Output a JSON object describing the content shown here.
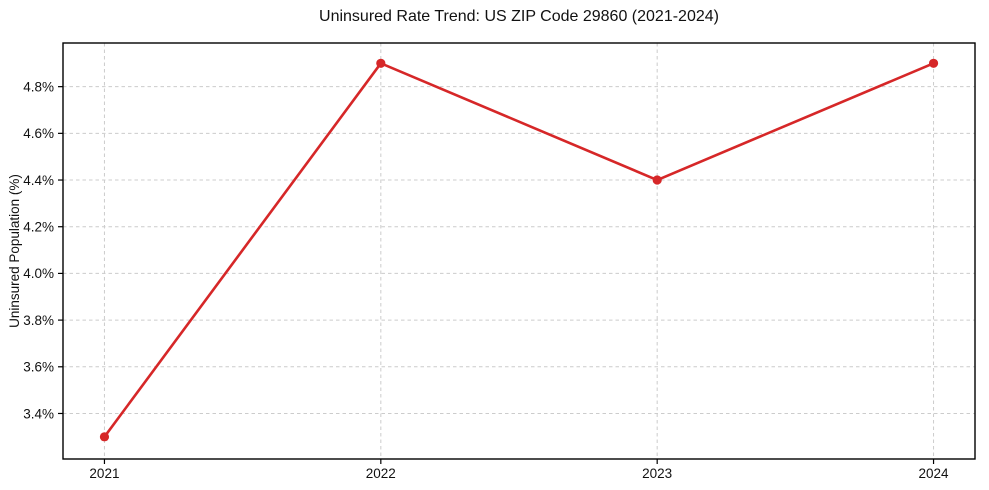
{
  "chart_data": {
    "type": "line",
    "title": "Uninsured Rate Trend: US ZIP Code 29860 (2021-2024)",
    "xlabel": "",
    "ylabel": "Uninsured Population (%)",
    "x": [
      2021,
      2022,
      2023,
      2024
    ],
    "x_tick_labels": [
      "2021",
      "2022",
      "2023",
      "2024"
    ],
    "values": [
      3.3,
      4.9,
      4.4,
      4.9
    ],
    "y_tick_values": [
      3.4,
      3.6,
      3.8,
      4.0,
      4.2,
      4.4,
      4.6,
      4.8
    ],
    "y_tick_labels": [
      "3.4%",
      "3.6%",
      "3.8%",
      "4.0%",
      "4.2%",
      "4.4%",
      "4.6%",
      "4.8%"
    ],
    "xlim": [
      2020.85,
      2024.15
    ],
    "ylim": [
      3.205,
      4.987
    ],
    "grid": true,
    "grid_style": "dashed",
    "legend": "none",
    "line_color": "#d62728",
    "marker": "circle",
    "grid_color": "#cccccc",
    "text_color": "#111111"
  }
}
